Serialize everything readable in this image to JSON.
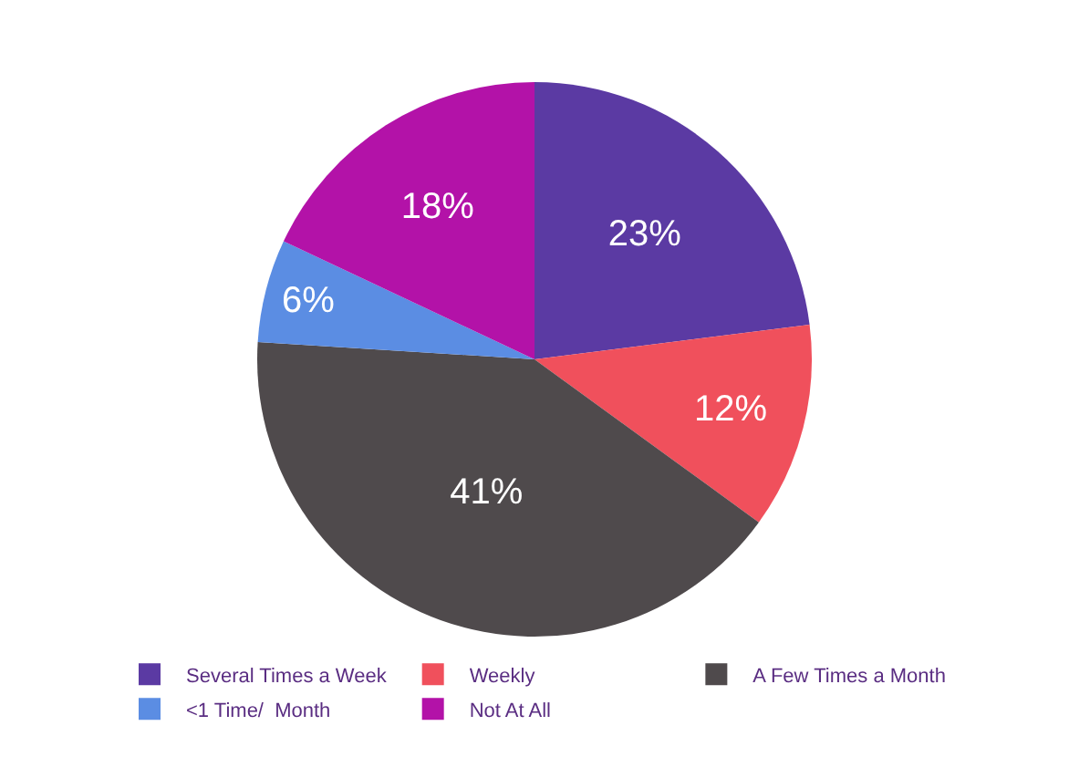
{
  "chart_data": {
    "type": "pie",
    "categories": [
      "Several Times a Week",
      "Weekly",
      "A Few Times a Month",
      "<1 Time/  Month",
      "Not At All"
    ],
    "values": [
      23,
      12,
      41,
      6,
      18
    ],
    "value_labels": [
      "23%",
      "12%",
      "41%",
      "6%",
      "18%"
    ],
    "colors": [
      "#5b3aa3",
      "#f0505c",
      "#4f4a4c",
      "#5b8de3",
      "#b312a8"
    ],
    "legend": "bottom"
  }
}
